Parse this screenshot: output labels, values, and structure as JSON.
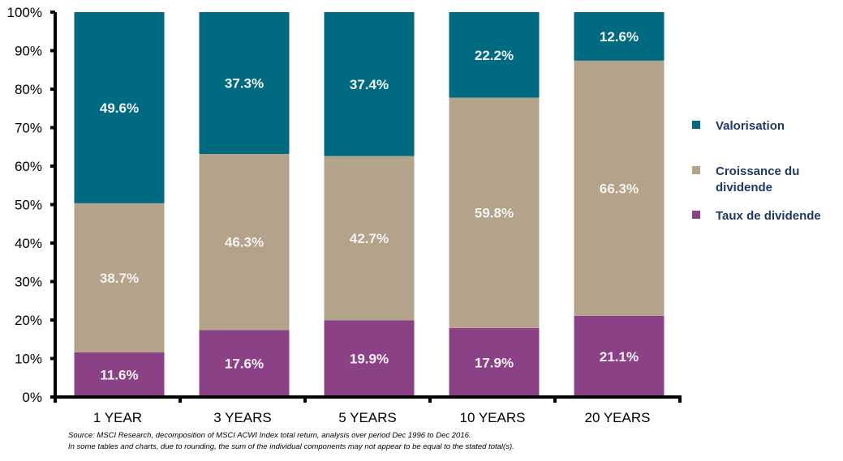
{
  "chart_data": {
    "type": "bar",
    "stacked": true,
    "categories": [
      "1 YEAR",
      "3 YEARS",
      "5 YEARS",
      "10 YEARS",
      "20 YEARS"
    ],
    "series": [
      {
        "name": "Taux de dividende",
        "color": "#8a4186",
        "values": [
          11.6,
          17.6,
          19.9,
          17.9,
          21.1
        ],
        "labels": [
          "11.6%",
          "17.6%",
          "19.9%",
          "17.9%",
          "21.1%"
        ]
      },
      {
        "name": "Croissance du dividende",
        "color": "#b4a38b",
        "values": [
          38.7,
          46.3,
          42.7,
          59.8,
          66.3
        ],
        "labels": [
          "38.7%",
          "46.3%",
          "42.7%",
          "59.8%",
          "66.3%"
        ]
      },
      {
        "name": "Valorisation",
        "color": "#006a80",
        "values": [
          49.6,
          37.3,
          37.4,
          22.2,
          12.6
        ],
        "labels": [
          "49.6%",
          "37.3%",
          "37.4%",
          "22.2%",
          "12.6%"
        ]
      }
    ],
    "ylim": [
      0,
      100
    ],
    "yticks": [
      "0%",
      "10%",
      "20%",
      "30%",
      "40%",
      "50%",
      "60%",
      "70%",
      "80%",
      "90%",
      "100%"
    ],
    "legend_order": [
      "Valorisation",
      "Croissance du dividende",
      "Taux de dividende"
    ],
    "legend_placement": "right",
    "grid": false
  },
  "source": {
    "line1": "Source: MSCI Research, decomposition of MSCI ACWI Index total return, analysis over period Dec 1996  to Dec 2016.",
    "line2": "In some tables and charts, due to rounding, the sum of the individual components may not appear to be equal to the stated total(s)."
  }
}
